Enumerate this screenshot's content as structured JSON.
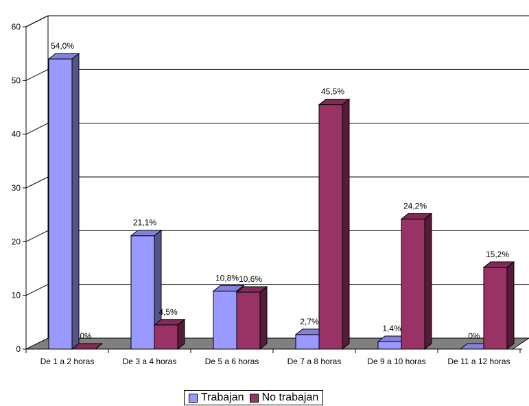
{
  "chart_data": {
    "type": "bar",
    "categories": [
      "De 1 a 2 horas",
      "De 3 a 4 horas",
      "De 5 a 6 horas",
      "De 7 a 8 horas",
      "De 9 a 10 horas",
      "De 11 a 12 horas"
    ],
    "series": [
      {
        "name": "Trabajan",
        "values": [
          54.0,
          21.1,
          10.8,
          2.7,
          1.4,
          0
        ],
        "labels": [
          "54,0%",
          "21,1%",
          "10,8%",
          "2,7%",
          "1,4%",
          "0%"
        ],
        "color": "#9999ff"
      },
      {
        "name": "No trabajan",
        "values": [
          0,
          4.5,
          10.6,
          45.5,
          24.2,
          15.2
        ],
        "labels": [
          "0%",
          "4,5%",
          "10,6%",
          "45,5%",
          "24,2%",
          "15,2%"
        ],
        "color": "#993366"
      }
    ],
    "yticks": [
      "0",
      "10",
      "20",
      "30",
      "40",
      "50",
      "60"
    ],
    "ylim": [
      0,
      60
    ],
    "grid": true,
    "legend_position": "bottom",
    "style": "3d-bar"
  }
}
